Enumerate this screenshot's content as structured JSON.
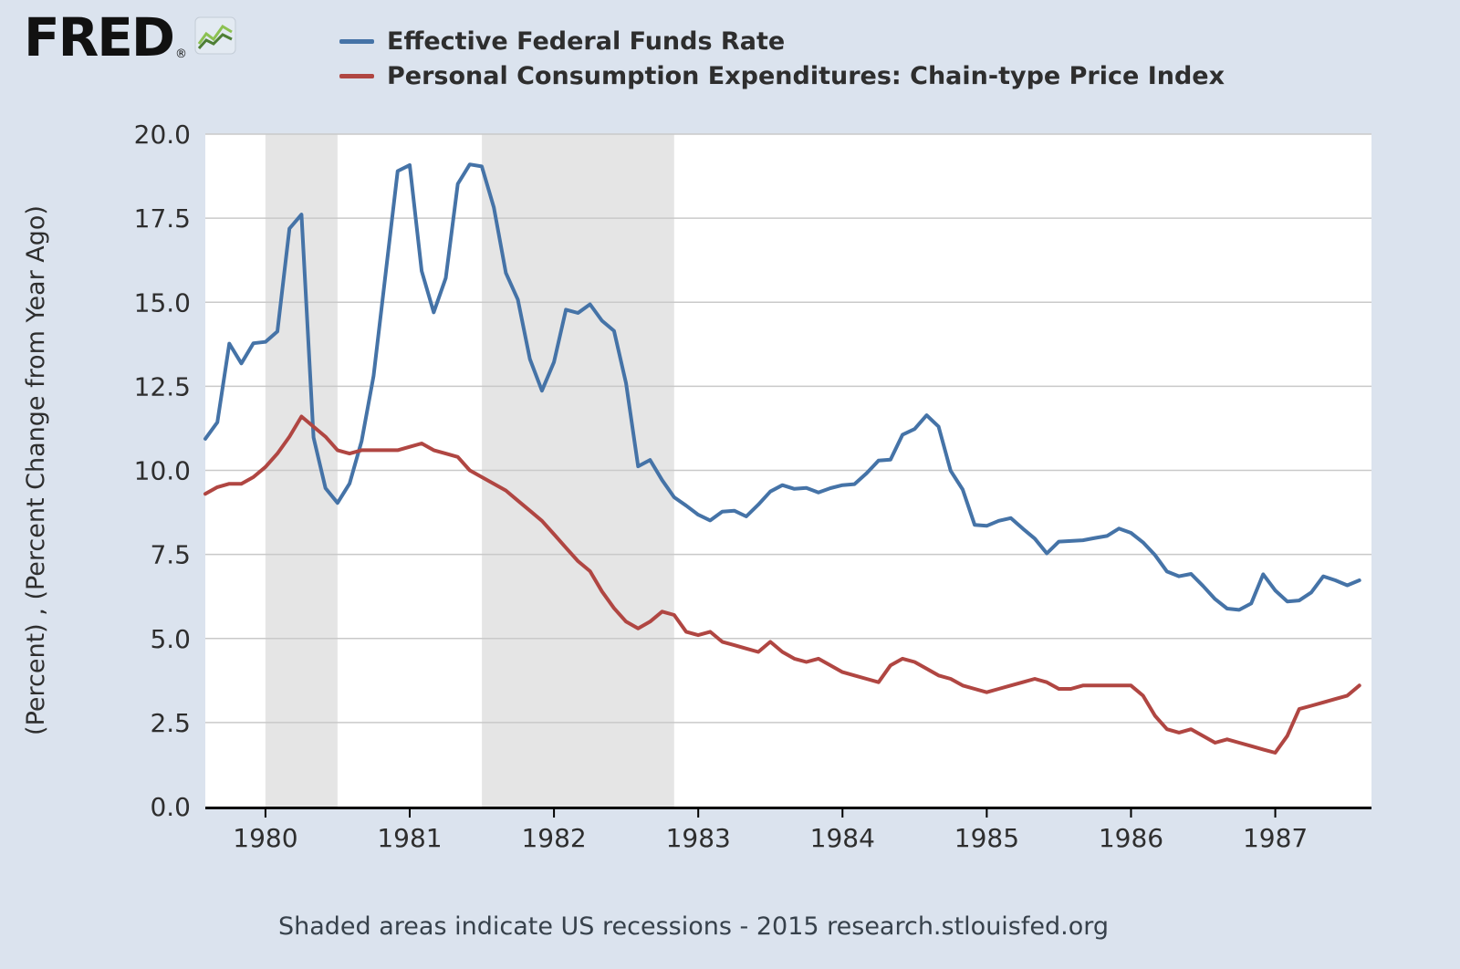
{
  "page": {
    "background": "#dbe3ee"
  },
  "logo": {
    "text": "FRED",
    "registered": "®"
  },
  "legend": [
    {
      "label": "Effective Federal Funds Rate",
      "color": "#4573a7"
    },
    {
      "label": "Personal Consumption Expenditures: Chain-type Price Index",
      "color": "#b04642"
    }
  ],
  "y_axis": {
    "title": "(Percent) , (Percent Change from Year Ago)",
    "tick_labels": [
      "0.0",
      "2.5",
      "5.0",
      "7.5",
      "10.0",
      "12.5",
      "15.0",
      "17.5",
      "20.0"
    ]
  },
  "x_axis": {
    "year_labels": [
      "1980",
      "1981",
      "1982",
      "1983",
      "1984",
      "1985",
      "1986",
      "1987"
    ]
  },
  "footer": {
    "text": "Shaded areas indicate US recessions - 2015 research.stlouisfed.org"
  },
  "chart_data": {
    "type": "line",
    "title": "",
    "xlabel": "",
    "ylabel": "(Percent) , (Percent Change from Year Ago)",
    "frequency": "monthly",
    "x_start_label": "1979-08",
    "x_end_label": "1987-08",
    "xlim": [
      1979.583,
      1987.667
    ],
    "ylim": [
      0,
      20
    ],
    "yticks": [
      0,
      2.5,
      5,
      7.5,
      10,
      12.5,
      15,
      17.5,
      20
    ],
    "year_ticks": [
      1980,
      1981,
      1982,
      1983,
      1984,
      1985,
      1986,
      1987
    ],
    "grid": true,
    "legend_position": "top",
    "recession_color": "#e5e5e5",
    "gridline_color": "#c9c9c9",
    "recessions": [
      [
        1980.0,
        1980.5
      ],
      [
        1981.5,
        1982.833
      ]
    ],
    "series": [
      {
        "name": "Effective Federal Funds Rate",
        "color": "#4573a7",
        "values": [
          10.94,
          11.43,
          13.77,
          13.18,
          13.78,
          13.82,
          14.13,
          17.19,
          17.61,
          10.98,
          9.47,
          9.03,
          9.61,
          10.87,
          12.81,
          15.85,
          18.9,
          19.08,
          15.93,
          14.7,
          15.72,
          18.52,
          19.1,
          19.04,
          17.82,
          15.87,
          15.08,
          13.31,
          12.37,
          13.22,
          14.78,
          14.68,
          14.94,
          14.45,
          14.15,
          12.59,
          10.12,
          10.31,
          9.71,
          9.2,
          8.95,
          8.68,
          8.51,
          8.77,
          8.8,
          8.63,
          8.98,
          9.37,
          9.56,
          9.45,
          9.48,
          9.34,
          9.47,
          9.56,
          9.59,
          9.91,
          10.29,
          10.32,
          11.06,
          11.23,
          11.64,
          11.3,
          9.99,
          9.43,
          8.38,
          8.35,
          8.5,
          8.58,
          8.27,
          7.97,
          7.53,
          7.88,
          7.9,
          7.92,
          7.99,
          8.05,
          8.27,
          8.14,
          7.86,
          7.48,
          6.99,
          6.85,
          6.92,
          6.56,
          6.17,
          5.89,
          5.85,
          6.04,
          6.91,
          6.43,
          6.1,
          6.13,
          6.37,
          6.85,
          6.73,
          6.58,
          6.73
        ]
      },
      {
        "name": "Personal Consumption Expenditures: Chain-type Price Index",
        "color": "#b04642",
        "values": [
          9.3,
          9.5,
          9.6,
          9.6,
          9.8,
          10.1,
          10.5,
          11.0,
          11.6,
          11.3,
          11.0,
          10.6,
          10.5,
          10.6,
          10.6,
          10.6,
          10.6,
          10.7,
          10.8,
          10.6,
          10.5,
          10.4,
          10.0,
          9.8,
          9.6,
          9.4,
          9.1,
          8.8,
          8.5,
          8.1,
          7.7,
          7.3,
          7.0,
          6.4,
          5.9,
          5.5,
          5.3,
          5.5,
          5.8,
          5.7,
          5.2,
          5.1,
          5.2,
          4.9,
          4.8,
          4.7,
          4.6,
          4.9,
          4.6,
          4.4,
          4.3,
          4.4,
          4.2,
          4.0,
          3.9,
          3.8,
          3.7,
          4.2,
          4.4,
          4.3,
          4.1,
          3.9,
          3.8,
          3.6,
          3.5,
          3.4,
          3.5,
          3.6,
          3.7,
          3.8,
          3.7,
          3.5,
          3.5,
          3.6,
          3.6,
          3.6,
          3.6,
          3.6,
          3.3,
          2.7,
          2.3,
          2.2,
          2.3,
          2.1,
          1.9,
          2.0,
          1.9,
          1.8,
          1.7,
          1.6,
          2.1,
          2.9,
          3.0,
          3.1,
          3.2,
          3.3,
          3.6
        ]
      }
    ]
  }
}
